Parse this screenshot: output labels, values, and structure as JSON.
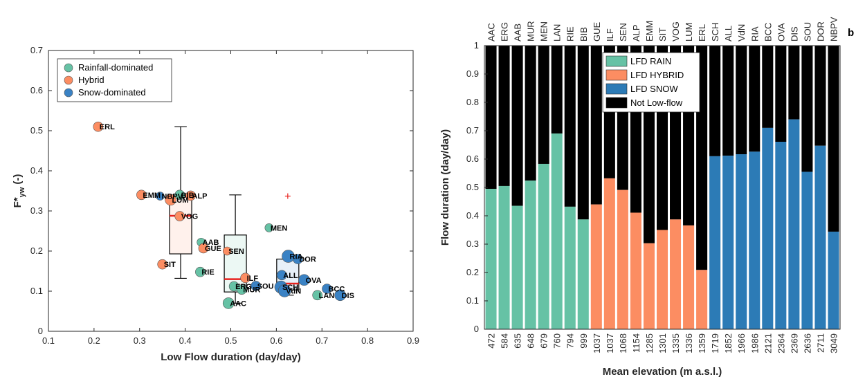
{
  "chart_data": [
    {
      "type": "scatter",
      "title": "",
      "xlabel": "Low Flow duration (day/day)",
      "ylabel_main": "F*",
      "ylabel_sub": "yw",
      "ylabel_tail": " (-)",
      "xlim": [
        0.1,
        0.9
      ],
      "ylim": [
        0,
        0.7
      ],
      "xticks": [
        "0.1",
        "0.2",
        "0.3",
        "0.4",
        "0.5",
        "0.6",
        "0.7",
        "0.8",
        "0.9"
      ],
      "yticks": [
        "0",
        "0.1",
        "0.2",
        "0.3",
        "0.4",
        "0.5",
        "0.6",
        "0.7"
      ],
      "legend": {
        "placement": "top-left",
        "entries": [
          {
            "name": "Rainfall-dominated",
            "color": "#66c2a5"
          },
          {
            "name": "Hybrid",
            "color": "#fc8d62"
          },
          {
            "name": "Snow-dominated",
            "color": "#3a82c4"
          }
        ]
      },
      "points": [
        {
          "label": "ERL",
          "x": 0.209,
          "y": 0.51,
          "group": "Hybrid",
          "size": 7
        },
        {
          "label": "EMM",
          "x": 0.304,
          "y": 0.34,
          "group": "Hybrid",
          "size": 7
        },
        {
          "label": "NBPV",
          "x": 0.345,
          "y": 0.337,
          "group": "Snow-dominated",
          "size": 6
        },
        {
          "label": "BIB",
          "x": 0.388,
          "y": 0.34,
          "group": "Rainfall-dominated",
          "size": 7
        },
        {
          "label": "ALP",
          "x": 0.412,
          "y": 0.338,
          "group": "Hybrid",
          "size": 7
        },
        {
          "label": "LUM",
          "x": 0.368,
          "y": 0.328,
          "group": "Hybrid",
          "size": 8
        },
        {
          "label": "VOG",
          "x": 0.388,
          "y": 0.287,
          "group": "Hybrid",
          "size": 7
        },
        {
          "label": "SIT",
          "x": 0.35,
          "y": 0.167,
          "group": "Hybrid",
          "size": 7
        },
        {
          "label": "AAB",
          "x": 0.435,
          "y": 0.222,
          "group": "Rainfall-dominated",
          "size": 6
        },
        {
          "label": "GUE",
          "x": 0.44,
          "y": 0.207,
          "group": "Hybrid",
          "size": 7
        },
        {
          "label": "RIE",
          "x": 0.433,
          "y": 0.148,
          "group": "Rainfall-dominated",
          "size": 7
        },
        {
          "label": "SEN",
          "x": 0.492,
          "y": 0.2,
          "group": "Hybrid",
          "size": 6
        },
        {
          "label": "MEN",
          "x": 0.584,
          "y": 0.258,
          "group": "Rainfall-dominated",
          "size": 6
        },
        {
          "label": "ILF",
          "x": 0.532,
          "y": 0.133,
          "group": "Hybrid",
          "size": 7
        },
        {
          "label": "ERG",
          "x": 0.507,
          "y": 0.112,
          "group": "Rainfall-dominated",
          "size": 7
        },
        {
          "label": "MUR",
          "x": 0.524,
          "y": 0.104,
          "group": "Rainfall-dominated",
          "size": 7
        },
        {
          "label": "SOU",
          "x": 0.555,
          "y": 0.113,
          "group": "Snow-dominated",
          "size": 7
        },
        {
          "label": "SCH",
          "x": 0.61,
          "y": 0.11,
          "group": "Snow-dominated",
          "size": 9
        },
        {
          "label": "AAC",
          "x": 0.495,
          "y": 0.07,
          "group": "Rainfall-dominated",
          "size": 8
        },
        {
          "label": "RIA",
          "x": 0.626,
          "y": 0.187,
          "group": "Snow-dominated",
          "size": 9
        },
        {
          "label": "DOR",
          "x": 0.647,
          "y": 0.18,
          "group": "Snow-dominated",
          "size": 7
        },
        {
          "label": "ALL",
          "x": 0.612,
          "y": 0.14,
          "group": "Snow-dominated",
          "size": 7
        },
        {
          "label": "OVA",
          "x": 0.661,
          "y": 0.128,
          "group": "Snow-dominated",
          "size": 8
        },
        {
          "label": "VdN",
          "x": 0.618,
          "y": 0.101,
          "group": "Snow-dominated",
          "size": 9
        },
        {
          "label": "BCC",
          "x": 0.711,
          "y": 0.106,
          "group": "Snow-dominated",
          "size": 7
        },
        {
          "label": "LAN",
          "x": 0.69,
          "y": 0.09,
          "group": "Rainfall-dominated",
          "size": 7
        },
        {
          "label": "DIS",
          "x": 0.74,
          "y": 0.09,
          "group": "Snow-dominated",
          "size": 8
        }
      ],
      "boxplots": [
        {
          "group": "Hybrid",
          "x": 0.39,
          "q1": 0.193,
          "median": 0.288,
          "q3": 0.338,
          "whisker_low": 0.132,
          "whisker_high": 0.51,
          "outliers": [],
          "color": "#fc8d62"
        },
        {
          "group": "Rainfall-dominated",
          "x": 0.51,
          "q1": 0.098,
          "median": 0.13,
          "q3": 0.24,
          "whisker_low": 0.07,
          "whisker_high": 0.34,
          "outliers": [],
          "color": "#66c2a5"
        },
        {
          "group": "Snow-dominated",
          "x": 0.625,
          "q1": 0.103,
          "median": 0.119,
          "q3": 0.18,
          "whisker_low": 0.09,
          "whisker_high": 0.18,
          "outliers": [
            0.337
          ],
          "color": "#3a82c4"
        }
      ],
      "median_color": "#e8221d"
    },
    {
      "type": "bar",
      "stacked": true,
      "panel_label": "b",
      "xlabel": "Mean elevation (m a.s.l.)",
      "ylabel": "Flow duration (day/day)",
      "ylim": [
        0,
        1
      ],
      "yticks": [
        "0",
        "0.1",
        "0.2",
        "0.3",
        "0.4",
        "0.5",
        "0.6",
        "0.7",
        "0.8",
        "0.9",
        "1"
      ],
      "legend": {
        "placement": "top-left",
        "entries": [
          {
            "name": "LFD RAIN",
            "color": "#66c2a5"
          },
          {
            "name": "LFD HYBRID",
            "color": "#fc8d62"
          },
          {
            "name": "LFD SNOW",
            "color": "#2c7bb6"
          },
          {
            "name": "Not Low-flow",
            "color": "#000000"
          }
        ]
      },
      "categories": [
        "AAC",
        "ERG",
        "AAB",
        "MUR",
        "MEN",
        "LAN",
        "RIE",
        "BIB",
        "GUE",
        "ILF",
        "SEN",
        "ALP",
        "EMM",
        "SIT",
        "VOG",
        "LUM",
        "ERL",
        "SCH",
        "ALL",
        "VdN",
        "RIA",
        "BCC",
        "OVA",
        "DIS",
        "SOU",
        "DOR",
        "NBPV"
      ],
      "elevations": [
        "472",
        "584",
        "635",
        "648",
        "679",
        "760",
        "794",
        "999",
        "1037",
        "1037",
        "1068",
        "1154",
        "1285",
        "1301",
        "1335",
        "1336",
        "1359",
        "1719",
        "1852",
        "1966",
        "1986",
        "2121",
        "2364",
        "2369",
        "2636",
        "2711",
        "3049"
      ],
      "groups": [
        "rain",
        "rain",
        "rain",
        "rain",
        "rain",
        "rain",
        "rain",
        "rain",
        "hybrid",
        "hybrid",
        "hybrid",
        "hybrid",
        "hybrid",
        "hybrid",
        "hybrid",
        "hybrid",
        "hybrid",
        "snow",
        "snow",
        "snow",
        "snow",
        "snow",
        "snow",
        "snow",
        "snow",
        "snow",
        "snow"
      ],
      "values": [
        0.495,
        0.505,
        0.435,
        0.524,
        0.583,
        0.69,
        0.432,
        0.387,
        0.44,
        0.532,
        0.491,
        0.411,
        0.303,
        0.35,
        0.387,
        0.366,
        0.209,
        0.61,
        0.612,
        0.617,
        0.626,
        0.71,
        0.661,
        0.74,
        0.555,
        0.647,
        0.344
      ]
    }
  ]
}
